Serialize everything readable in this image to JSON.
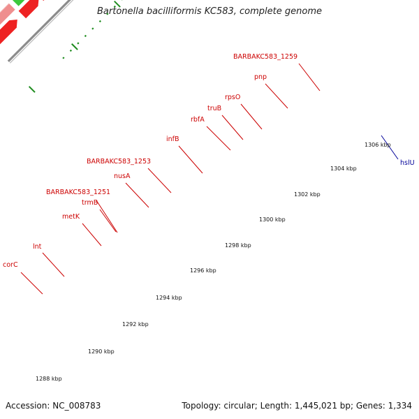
{
  "title": "Bartonella bacilliformis KC583, complete genome",
  "footer": {
    "accession": "Accession: NC_008783",
    "summary": "Topology: circular; Length: 1,445,021 bp; Genes: 1,334"
  },
  "colors": {
    "backbone": "#8c8c8c",
    "tick": "#1e8c1e",
    "forward_gene": "#ee2222",
    "pink": "#ef8f8f",
    "orange": "#f5960f",
    "dark_gray": "#606060",
    "blue": "#0a0ad2",
    "olive": "#5a8230",
    "light_gray": "#c8c8c8",
    "green": "#3cc83c",
    "khaki": "#b9b46e",
    "steel": "#4682b4",
    "label_red": "#cc0000",
    "label_blue": "#000099"
  },
  "gene_labels": [
    {
      "name": "corC",
      "kind": "red"
    },
    {
      "name": "lnt",
      "kind": "red"
    },
    {
      "name": "metK",
      "kind": "red"
    },
    {
      "name": "BARBAKC583_1251",
      "kind": "red"
    },
    {
      "name": "trmB",
      "kind": "red"
    },
    {
      "name": "nusA",
      "kind": "red"
    },
    {
      "name": "BARBAKC583_1253",
      "kind": "red"
    },
    {
      "name": "infB",
      "kind": "red"
    },
    {
      "name": "rbfA",
      "kind": "red"
    },
    {
      "name": "truB",
      "kind": "red"
    },
    {
      "name": "rpsO",
      "kind": "red"
    },
    {
      "name": "pnp",
      "kind": "red"
    },
    {
      "name": "BARBAKC583_1259",
      "kind": "red"
    },
    {
      "name": "hslU",
      "kind": "blue"
    }
  ],
  "axis_ticks": [
    {
      "kbp": 1288,
      "label": "1288 kbp"
    },
    {
      "kbp": 1290,
      "label": "1290 kbp"
    },
    {
      "kbp": 1292,
      "label": "1292 kbp"
    },
    {
      "kbp": 1294,
      "label": "1294 kbp"
    },
    {
      "kbp": 1296,
      "label": "1296 kbp"
    },
    {
      "kbp": 1298,
      "label": "1298 kbp"
    },
    {
      "kbp": 1300,
      "label": "1300 kbp"
    },
    {
      "kbp": 1302,
      "label": "1302 kbp"
    },
    {
      "kbp": 1304,
      "label": "1304 kbp"
    },
    {
      "kbp": 1306,
      "label": "1306 kbp"
    }
  ]
}
